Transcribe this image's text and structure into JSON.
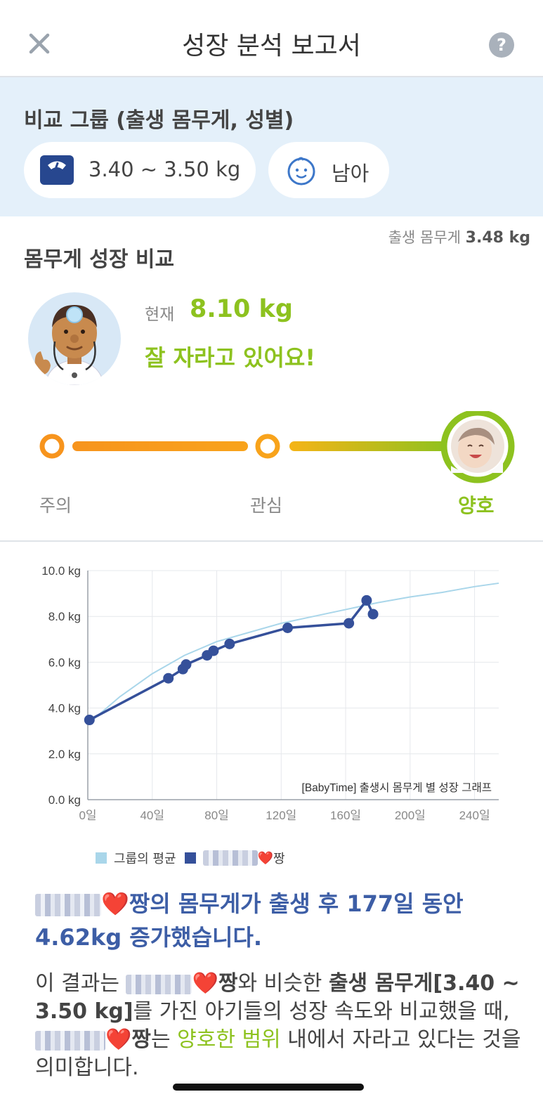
{
  "header": {
    "title": "성장 분석 보고서",
    "close_icon": "close-icon",
    "help_icon": "question-icon",
    "help_glyph": "?"
  },
  "compare": {
    "label": "비교 그룹 (출생 몸무게, 성별)",
    "weight_range": "3.40 ~ 3.50 kg",
    "gender": "남아"
  },
  "birth_weight": {
    "label": "출생 몸무게",
    "value": "3.48 kg"
  },
  "weight_section": {
    "title": "몸무게 성장 비교",
    "current_label": "현재",
    "current_value": "8.10 kg",
    "status_message": "잘 자라고 있어요!"
  },
  "gauge": {
    "labels": [
      "주의",
      "관심",
      "양호"
    ],
    "selected": "양호"
  },
  "chart_data": {
    "type": "line",
    "xlabel": "",
    "ylabel": "",
    "xlim": [
      0,
      255
    ],
    "ylim": [
      0,
      10
    ],
    "x_ticks": [
      "0일",
      "40일",
      "80일",
      "120일",
      "160일",
      "200일",
      "240일"
    ],
    "x_tick_values": [
      0,
      40,
      80,
      120,
      160,
      200,
      240
    ],
    "y_ticks": [
      "0.0 kg",
      "2.0 kg",
      "4.0 kg",
      "6.0 kg",
      "8.0 kg",
      "10.0 kg"
    ],
    "y_tick_values": [
      0,
      2,
      4,
      6,
      8,
      10
    ],
    "grid": true,
    "annotation": "[BabyTime] 출생시 몸무게 별 성장 그래프",
    "series": [
      {
        "name": "그룹의 평균",
        "color": "#a9d6ea",
        "x": [
          0,
          20,
          40,
          60,
          80,
          100,
          120,
          140,
          160,
          180,
          200,
          220,
          240,
          255
        ],
        "y": [
          3.3,
          4.5,
          5.5,
          6.3,
          6.9,
          7.3,
          7.7,
          8.0,
          8.3,
          8.6,
          8.85,
          9.05,
          9.3,
          9.45
        ]
      },
      {
        "name": "",
        "color": "#35509a",
        "x": [
          1,
          50,
          59,
          61,
          74,
          78,
          88,
          124,
          162,
          173,
          177
        ],
        "y": [
          3.48,
          5.3,
          5.7,
          5.9,
          6.3,
          6.5,
          6.8,
          7.5,
          7.7,
          8.7,
          8.1
        ]
      }
    ]
  },
  "legend": {
    "avg": "그룹의 평균",
    "baby_suffix": "짱"
  },
  "summary": {
    "text": "짱의 몸무게가 출생 후 177일 동안 4.62kg 증가했습니다."
  },
  "explain": {
    "p1": "이 결과는",
    "p2": "짱",
    "p3": "와 비슷한",
    "p4": "출생 몸무게[3.40 ~ 3.50 kg]",
    "p5": "를 가진 아기들의 성장 속도와 비교했을 때,",
    "p6": "짱",
    "p7": "는",
    "p8": "양호한 범위",
    "p9": "내에서 자라고 있다는 것을 의미합니다."
  },
  "heart": "❤️",
  "colors": {
    "accent_green": "#8dc21f",
    "accent_orange": "#f7941d",
    "series_blue": "#35509a",
    "avg_blue": "#a9d6ea"
  }
}
